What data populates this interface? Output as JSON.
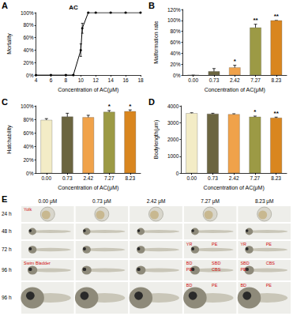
{
  "chart_data": [
    {
      "panel_label": "A",
      "type": "line",
      "title": "AC",
      "x": [
        4,
        6,
        8,
        9,
        10,
        10.2,
        11,
        12,
        14,
        16,
        18
      ],
      "values": [
        0,
        0,
        0,
        0,
        40,
        75,
        100,
        100,
        100,
        100,
        100
      ],
      "errors": [
        0,
        0,
        0,
        0,
        10,
        8,
        0,
        0,
        0,
        0,
        0
      ],
      "xlabel": "Concentration of AC(μM)",
      "ylabel": "Mortality",
      "xlim": [
        4,
        18
      ],
      "xticks": [
        4,
        6,
        8,
        10,
        12,
        14,
        16,
        18
      ],
      "ylim": [
        0,
        100
      ],
      "yticks": [
        {
          "value": 0,
          "label": "0%"
        },
        {
          "value": 20,
          "label": "20%"
        },
        {
          "value": 40,
          "label": "40%"
        },
        {
          "value": 60,
          "label": "60%"
        },
        {
          "value": 80,
          "label": "80%"
        },
        {
          "value": 100,
          "label": "100%"
        }
      ],
      "color": "#000000",
      "marker": "circle",
      "grid": false
    },
    {
      "panel_label": "B",
      "type": "bar",
      "categories": [
        "0.00",
        "0.73",
        "2.42",
        "7.27",
        "8.23"
      ],
      "values": [
        0,
        7,
        14,
        87,
        100
      ],
      "errors": [
        0,
        5,
        4,
        6,
        0
      ],
      "significance": [
        null,
        null,
        "*",
        "**",
        "**"
      ],
      "colors": [
        "#f3ecc6",
        "#6b6540",
        "#f0a24a",
        "#9c9a45",
        "#d9861f"
      ],
      "xlabel": "Concentration of AC(μM)",
      "ylabel": "Malformation rate",
      "ylim": [
        0,
        120
      ],
      "yticks": [
        {
          "value": 0,
          "label": "0%"
        },
        {
          "value": 20,
          "label": "20%"
        },
        {
          "value": 40,
          "label": "40%"
        },
        {
          "value": 60,
          "label": "60%"
        },
        {
          "value": 80,
          "label": "80%"
        },
        {
          "value": 100,
          "label": "100%"
        },
        {
          "value": 120,
          "label": "120%"
        }
      ],
      "grid": false
    },
    {
      "panel_label": "C",
      "type": "bar",
      "categories": [
        "0.00",
        "0.73",
        "2.42",
        "7.27",
        "8.23"
      ],
      "values": [
        79,
        84,
        83,
        91,
        92
      ],
      "errors": [
        2,
        5,
        3,
        2,
        2
      ],
      "significance": [
        null,
        null,
        null,
        "*",
        "*"
      ],
      "colors": [
        "#f3ecc6",
        "#6b6540",
        "#f0a24a",
        "#9c9a45",
        "#d9861f"
      ],
      "xlabel": "Concentration of AC(μM)",
      "ylabel": "Hatchability",
      "ylim": [
        0,
        100
      ],
      "yticks": [
        {
          "value": 0,
          "label": "0%"
        },
        {
          "value": 20,
          "label": "20%"
        },
        {
          "value": 40,
          "label": "40%"
        },
        {
          "value": 60,
          "label": "60%"
        },
        {
          "value": 80,
          "label": "80%"
        },
        {
          "value": 100,
          "label": "100%"
        }
      ],
      "grid": false
    },
    {
      "panel_label": "D",
      "type": "bar",
      "categories": [
        "0.00",
        "0.73",
        "2.42",
        "7.27",
        "8.23"
      ],
      "values": [
        3560,
        3530,
        3500,
        3350,
        3290
      ],
      "errors": [
        30,
        30,
        30,
        40,
        40
      ],
      "significance": [
        null,
        null,
        null,
        "*",
        "**"
      ],
      "colors": [
        "#f3ecc6",
        "#6b6540",
        "#f0a24a",
        "#9c9a45",
        "#d9861f"
      ],
      "xlabel": "Concentration of AC(μM)",
      "ylabel": "Bodylength(μm)",
      "ylim": [
        0,
        4000
      ],
      "yticks": [
        0,
        1000,
        2000,
        3000,
        4000
      ],
      "grid": false
    }
  ],
  "image_panel": {
    "panel_label": "E",
    "columns": [
      "0.00 μM",
      "0.73 μM",
      "2.42 μM",
      "7.27 μM",
      "8.23 μM"
    ],
    "rows": [
      {
        "label": "24 h",
        "cells": [
          [
            "Yolk"
          ],
          [],
          [],
          [],
          []
        ]
      },
      {
        "label": "48 h",
        "cells": [
          [],
          [],
          [],
          [],
          []
        ]
      },
      {
        "label": "72 h",
        "cells": [
          [],
          [],
          [],
          [
            "YR",
            "PE"
          ],
          [
            "YR",
            "PE"
          ]
        ]
      },
      {
        "label": "96 h",
        "cells": [
          [
            "Swim Bladder"
          ],
          [],
          [],
          [
            "BD",
            "SBD",
            "PE",
            "CBS"
          ],
          [
            "SBD",
            "CBS",
            "PE"
          ]
        ]
      },
      {
        "label": "96 h",
        "cells": [
          [],
          [],
          [],
          [
            "BD",
            "PE"
          ],
          [
            "BD",
            "PE"
          ]
        ]
      }
    ]
  }
}
